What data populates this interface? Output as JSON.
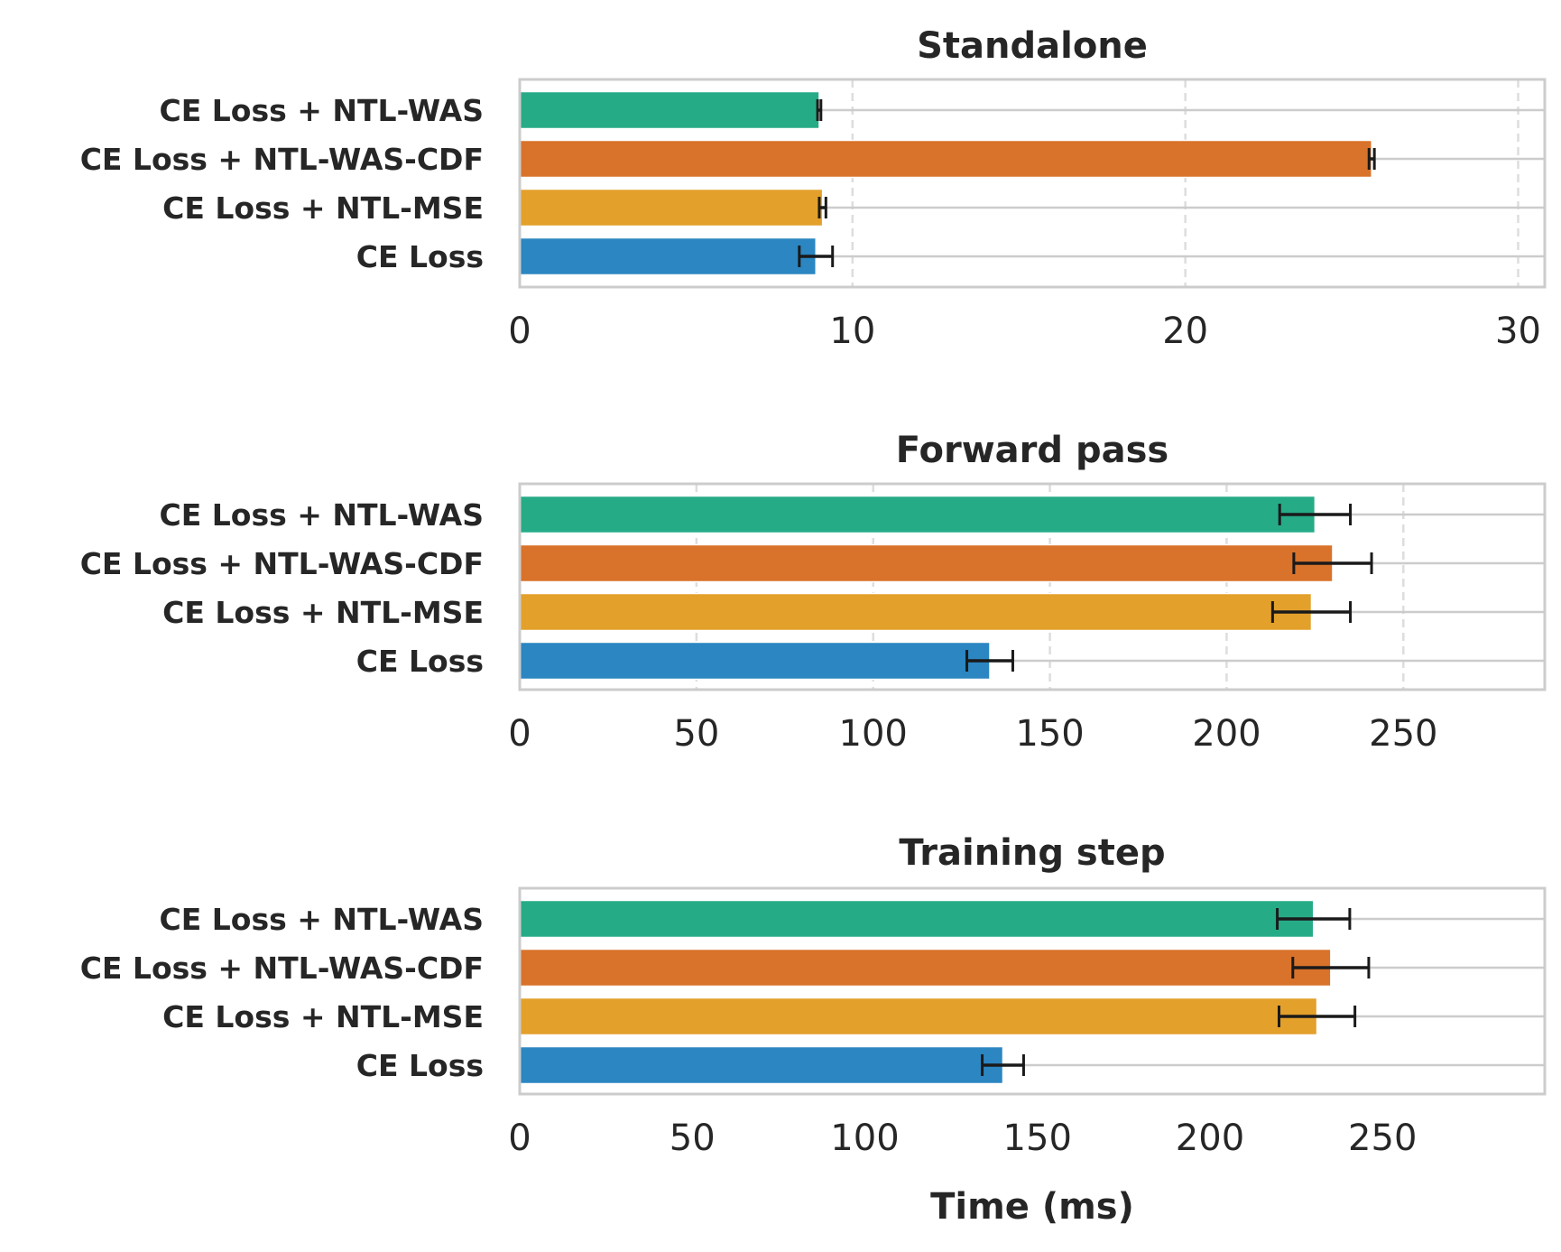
{
  "chart_data": [
    {
      "type": "bar",
      "orientation": "horizontal",
      "title": "Standalone",
      "xlabel": "",
      "xlim": [
        0,
        30.8
      ],
      "xticks": [
        0,
        10,
        20,
        30
      ],
      "categories": [
        "CE Loss + NTL-WAS",
        "CE Loss + NTL-WAS-CDF",
        "CE Loss + NTL-MSE",
        "CE Loss"
      ],
      "values": [
        9.0,
        25.6,
        9.1,
        8.9
      ],
      "errors": [
        0.05,
        0.08,
        0.1,
        0.5
      ],
      "grid": true
    },
    {
      "type": "bar",
      "orientation": "horizontal",
      "title": "Forward pass",
      "xlabel": "",
      "xlim": [
        0,
        290
      ],
      "xticks": [
        0,
        50,
        100,
        150,
        200,
        250
      ],
      "categories": [
        "CE Loss + NTL-WAS",
        "CE Loss + NTL-WAS-CDF",
        "CE Loss + NTL-MSE",
        "CE Loss"
      ],
      "values": [
        225,
        230,
        224,
        133
      ],
      "errors": [
        10,
        11,
        11,
        6.5
      ],
      "grid": true
    },
    {
      "type": "bar",
      "orientation": "horizontal",
      "title": "Training step",
      "xlabel": "Time (ms)",
      "xlim": [
        0,
        297
      ],
      "xticks": [
        0,
        50,
        100,
        150,
        200,
        250
      ],
      "categories": [
        "CE Loss + NTL-WAS",
        "CE Loss + NTL-WAS-CDF",
        "CE Loss + NTL-MSE",
        "CE Loss"
      ],
      "values": [
        230,
        235,
        231,
        140
      ],
      "errors": [
        10.5,
        11,
        11,
        6
      ]
    }
  ],
  "colors": {
    "bars": [
      "#26ab87",
      "#d9722a",
      "#e3a02b",
      "#2b86c1"
    ],
    "axes": "#cccccc",
    "grid": "#dddddd",
    "error": "#1a1a1a"
  }
}
